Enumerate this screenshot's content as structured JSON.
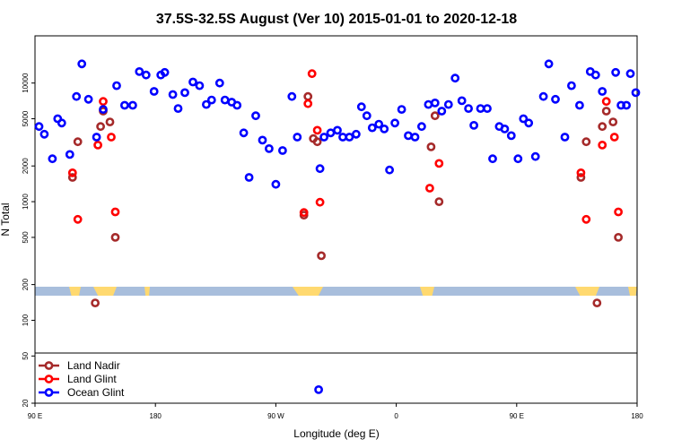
{
  "chart_data": {
    "type": "scatter",
    "title": "37.5S-32.5S August (Ver 10)   2015-01-01 to 2020-12-18",
    "xlabel": "Longitude (deg E)",
    "ylabel": "N Total",
    "y_scale": "log",
    "xlim": [
      90,
      540
    ],
    "ylim": [
      20,
      25000
    ],
    "x_ticks": [
      {
        "value": 90,
        "label": "90 E"
      },
      {
        "value": 180,
        "label": "180"
      },
      {
        "value": 270,
        "label": "90 W"
      },
      {
        "value": 360,
        "label": "0"
      },
      {
        "value": 450,
        "label": "90 E"
      },
      {
        "value": 540,
        "label": "180"
      }
    ],
    "y_ticks": [
      {
        "value": 20,
        "label": "20"
      },
      {
        "value": 50,
        "label": "50"
      },
      {
        "value": 100,
        "label": "100"
      },
      {
        "value": 200,
        "label": "200"
      },
      {
        "value": 500,
        "label": "500"
      },
      {
        "value": 1000,
        "label": "1000"
      },
      {
        "value": 2000,
        "label": "2000"
      },
      {
        "value": 5000,
        "label": "5000"
      },
      {
        "value": 10000,
        "label": "10000"
      }
    ],
    "legend": {
      "position": "bottom-left",
      "entries": [
        "Land Nadir",
        "Land Glint",
        "Ocean Glint"
      ]
    },
    "series": [
      {
        "name": "Land Nadir",
        "color": "#a52a2a",
        "points": [
          [
            118,
            1600
          ],
          [
            122,
            3200
          ],
          [
            135,
            140
          ],
          [
            139,
            4300
          ],
          [
            141,
            5800
          ],
          [
            146,
            4700
          ],
          [
            150,
            500
          ],
          [
            291,
            770
          ],
          [
            294,
            7700
          ],
          [
            298,
            3400
          ],
          [
            301,
            3200
          ],
          [
            304,
            350
          ],
          [
            386,
            2900
          ],
          [
            389,
            5300
          ],
          [
            392,
            1000
          ],
          [
            498,
            1600
          ],
          [
            502,
            3200
          ],
          [
            510,
            140
          ],
          [
            514,
            4300
          ],
          [
            517,
            5800
          ],
          [
            522,
            4700
          ],
          [
            526,
            500
          ]
        ]
      },
      {
        "name": "Land Glint",
        "color": "#ff0000",
        "points": [
          [
            118,
            1750
          ],
          [
            122,
            710
          ],
          [
            137,
            3000
          ],
          [
            141,
            7000
          ],
          [
            147,
            3500
          ],
          [
            150,
            820
          ],
          [
            291,
            810
          ],
          [
            294,
            6700
          ],
          [
            297,
            12000
          ],
          [
            301,
            4000
          ],
          [
            303,
            990
          ],
          [
            385,
            1300
          ],
          [
            392,
            2100
          ],
          [
            498,
            1750
          ],
          [
            502,
            710
          ],
          [
            514,
            3000
          ],
          [
            517,
            7000
          ],
          [
            523,
            3500
          ],
          [
            526,
            820
          ]
        ]
      },
      {
        "name": "Ocean Glint",
        "color": "#0000ff",
        "points": [
          [
            93,
            4300
          ],
          [
            97,
            3700
          ],
          [
            103,
            2300
          ],
          [
            107,
            5000
          ],
          [
            110,
            4600
          ],
          [
            116,
            2500
          ],
          [
            121,
            7700
          ],
          [
            125,
            14500
          ],
          [
            130,
            7300
          ],
          [
            136,
            3500
          ],
          [
            141,
            6000
          ],
          [
            151,
            9500
          ],
          [
            157,
            6500
          ],
          [
            163,
            6500
          ],
          [
            168,
            12500
          ],
          [
            173,
            11700
          ],
          [
            179,
            8500
          ],
          [
            184,
            11700
          ],
          [
            187,
            12300
          ],
          [
            193,
            8000
          ],
          [
            197,
            6100
          ],
          [
            202,
            8300
          ],
          [
            208,
            10200
          ],
          [
            213,
            9500
          ],
          [
            218,
            6600
          ],
          [
            222,
            7200
          ],
          [
            228,
            10000
          ],
          [
            232,
            7200
          ],
          [
            237,
            6900
          ],
          [
            241,
            6500
          ],
          [
            246,
            3800
          ],
          [
            250,
            1600
          ],
          [
            255,
            5300
          ],
          [
            260,
            3300
          ],
          [
            265,
            2800
          ],
          [
            270,
            1400
          ],
          [
            275,
            2700
          ],
          [
            282,
            7700
          ],
          [
            286,
            3500
          ],
          [
            303,
            1900
          ],
          [
            306,
            3500
          ],
          [
            311,
            3800
          ],
          [
            316,
            4000
          ],
          [
            320,
            3500
          ],
          [
            325,
            3500
          ],
          [
            330,
            3700
          ],
          [
            334,
            6300
          ],
          [
            338,
            5300
          ],
          [
            342,
            4200
          ],
          [
            347,
            4500
          ],
          [
            351,
            4100
          ],
          [
            355,
            1850
          ],
          [
            359,
            4600
          ],
          [
            364,
            6000
          ],
          [
            369,
            3600
          ],
          [
            374,
            3500
          ],
          [
            379,
            4300
          ],
          [
            384,
            6600
          ],
          [
            389,
            6800
          ],
          [
            394,
            5800
          ],
          [
            399,
            6600
          ],
          [
            404,
            11000
          ],
          [
            409,
            7100
          ],
          [
            414,
            6100
          ],
          [
            418,
            4400
          ],
          [
            423,
            6100
          ],
          [
            428,
            6100
          ],
          [
            432,
            2300
          ],
          [
            437,
            4300
          ],
          [
            441,
            4100
          ],
          [
            446,
            3600
          ],
          [
            451,
            2300
          ],
          [
            455,
            5000
          ],
          [
            459,
            4600
          ],
          [
            464,
            2400
          ],
          [
            470,
            7700
          ],
          [
            474,
            14500
          ],
          [
            479,
            7300
          ],
          [
            486,
            3500
          ],
          [
            491,
            9500
          ],
          [
            497,
            6500
          ],
          [
            505,
            12500
          ],
          [
            509,
            11700
          ],
          [
            514,
            8500
          ],
          [
            524,
            12300
          ],
          [
            528,
            6500
          ],
          [
            532,
            6500
          ],
          [
            535,
            12000
          ],
          [
            539,
            8300
          ],
          [
            302,
            26
          ]
        ]
      }
    ]
  },
  "colors": {
    "ocean_band": "#a8bedc",
    "land_band": "#ffd970",
    "background": "#ffffff",
    "axis": "#000000"
  }
}
